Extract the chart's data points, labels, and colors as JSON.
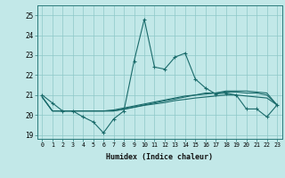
{
  "title": "",
  "xlabel": "Humidex (Indice chaleur)",
  "background_color": "#c2e8e8",
  "grid_color": "#8ec8c8",
  "line_color": "#1a6b6b",
  "xlim": [
    -0.5,
    23.5
  ],
  "ylim": [
    18.8,
    25.5
  ],
  "yticks": [
    19,
    20,
    21,
    22,
    23,
    24,
    25
  ],
  "xticks": [
    0,
    1,
    2,
    3,
    4,
    5,
    6,
    7,
    8,
    9,
    10,
    11,
    12,
    13,
    14,
    15,
    16,
    17,
    18,
    19,
    20,
    21,
    22,
    23
  ],
  "main_line": [
    21.0,
    20.6,
    20.2,
    20.2,
    19.9,
    19.65,
    19.1,
    19.8,
    20.2,
    22.7,
    24.8,
    22.4,
    22.3,
    22.9,
    23.1,
    21.8,
    21.35,
    21.05,
    21.1,
    21.0,
    20.3,
    20.3,
    19.9,
    20.5
  ],
  "line2": [
    20.9,
    20.2,
    20.2,
    20.2,
    20.2,
    20.2,
    20.2,
    20.25,
    20.35,
    20.45,
    20.55,
    20.65,
    20.75,
    20.85,
    20.95,
    21.0,
    21.05,
    21.1,
    21.15,
    21.15,
    21.1,
    21.1,
    21.0,
    20.5
  ],
  "line3": [
    20.9,
    20.2,
    20.2,
    20.2,
    20.2,
    20.2,
    20.2,
    20.2,
    20.3,
    20.4,
    20.5,
    20.6,
    20.7,
    20.8,
    20.9,
    21.0,
    21.1,
    21.1,
    21.2,
    21.2,
    21.2,
    21.15,
    21.1,
    20.5
  ],
  "line4": [
    20.9,
    20.2,
    20.2,
    20.2,
    20.2,
    20.2,
    20.2,
    20.2,
    20.28,
    20.38,
    20.48,
    20.55,
    20.62,
    20.72,
    20.78,
    20.85,
    20.9,
    20.95,
    21.0,
    21.0,
    20.95,
    20.9,
    20.85,
    20.5
  ]
}
